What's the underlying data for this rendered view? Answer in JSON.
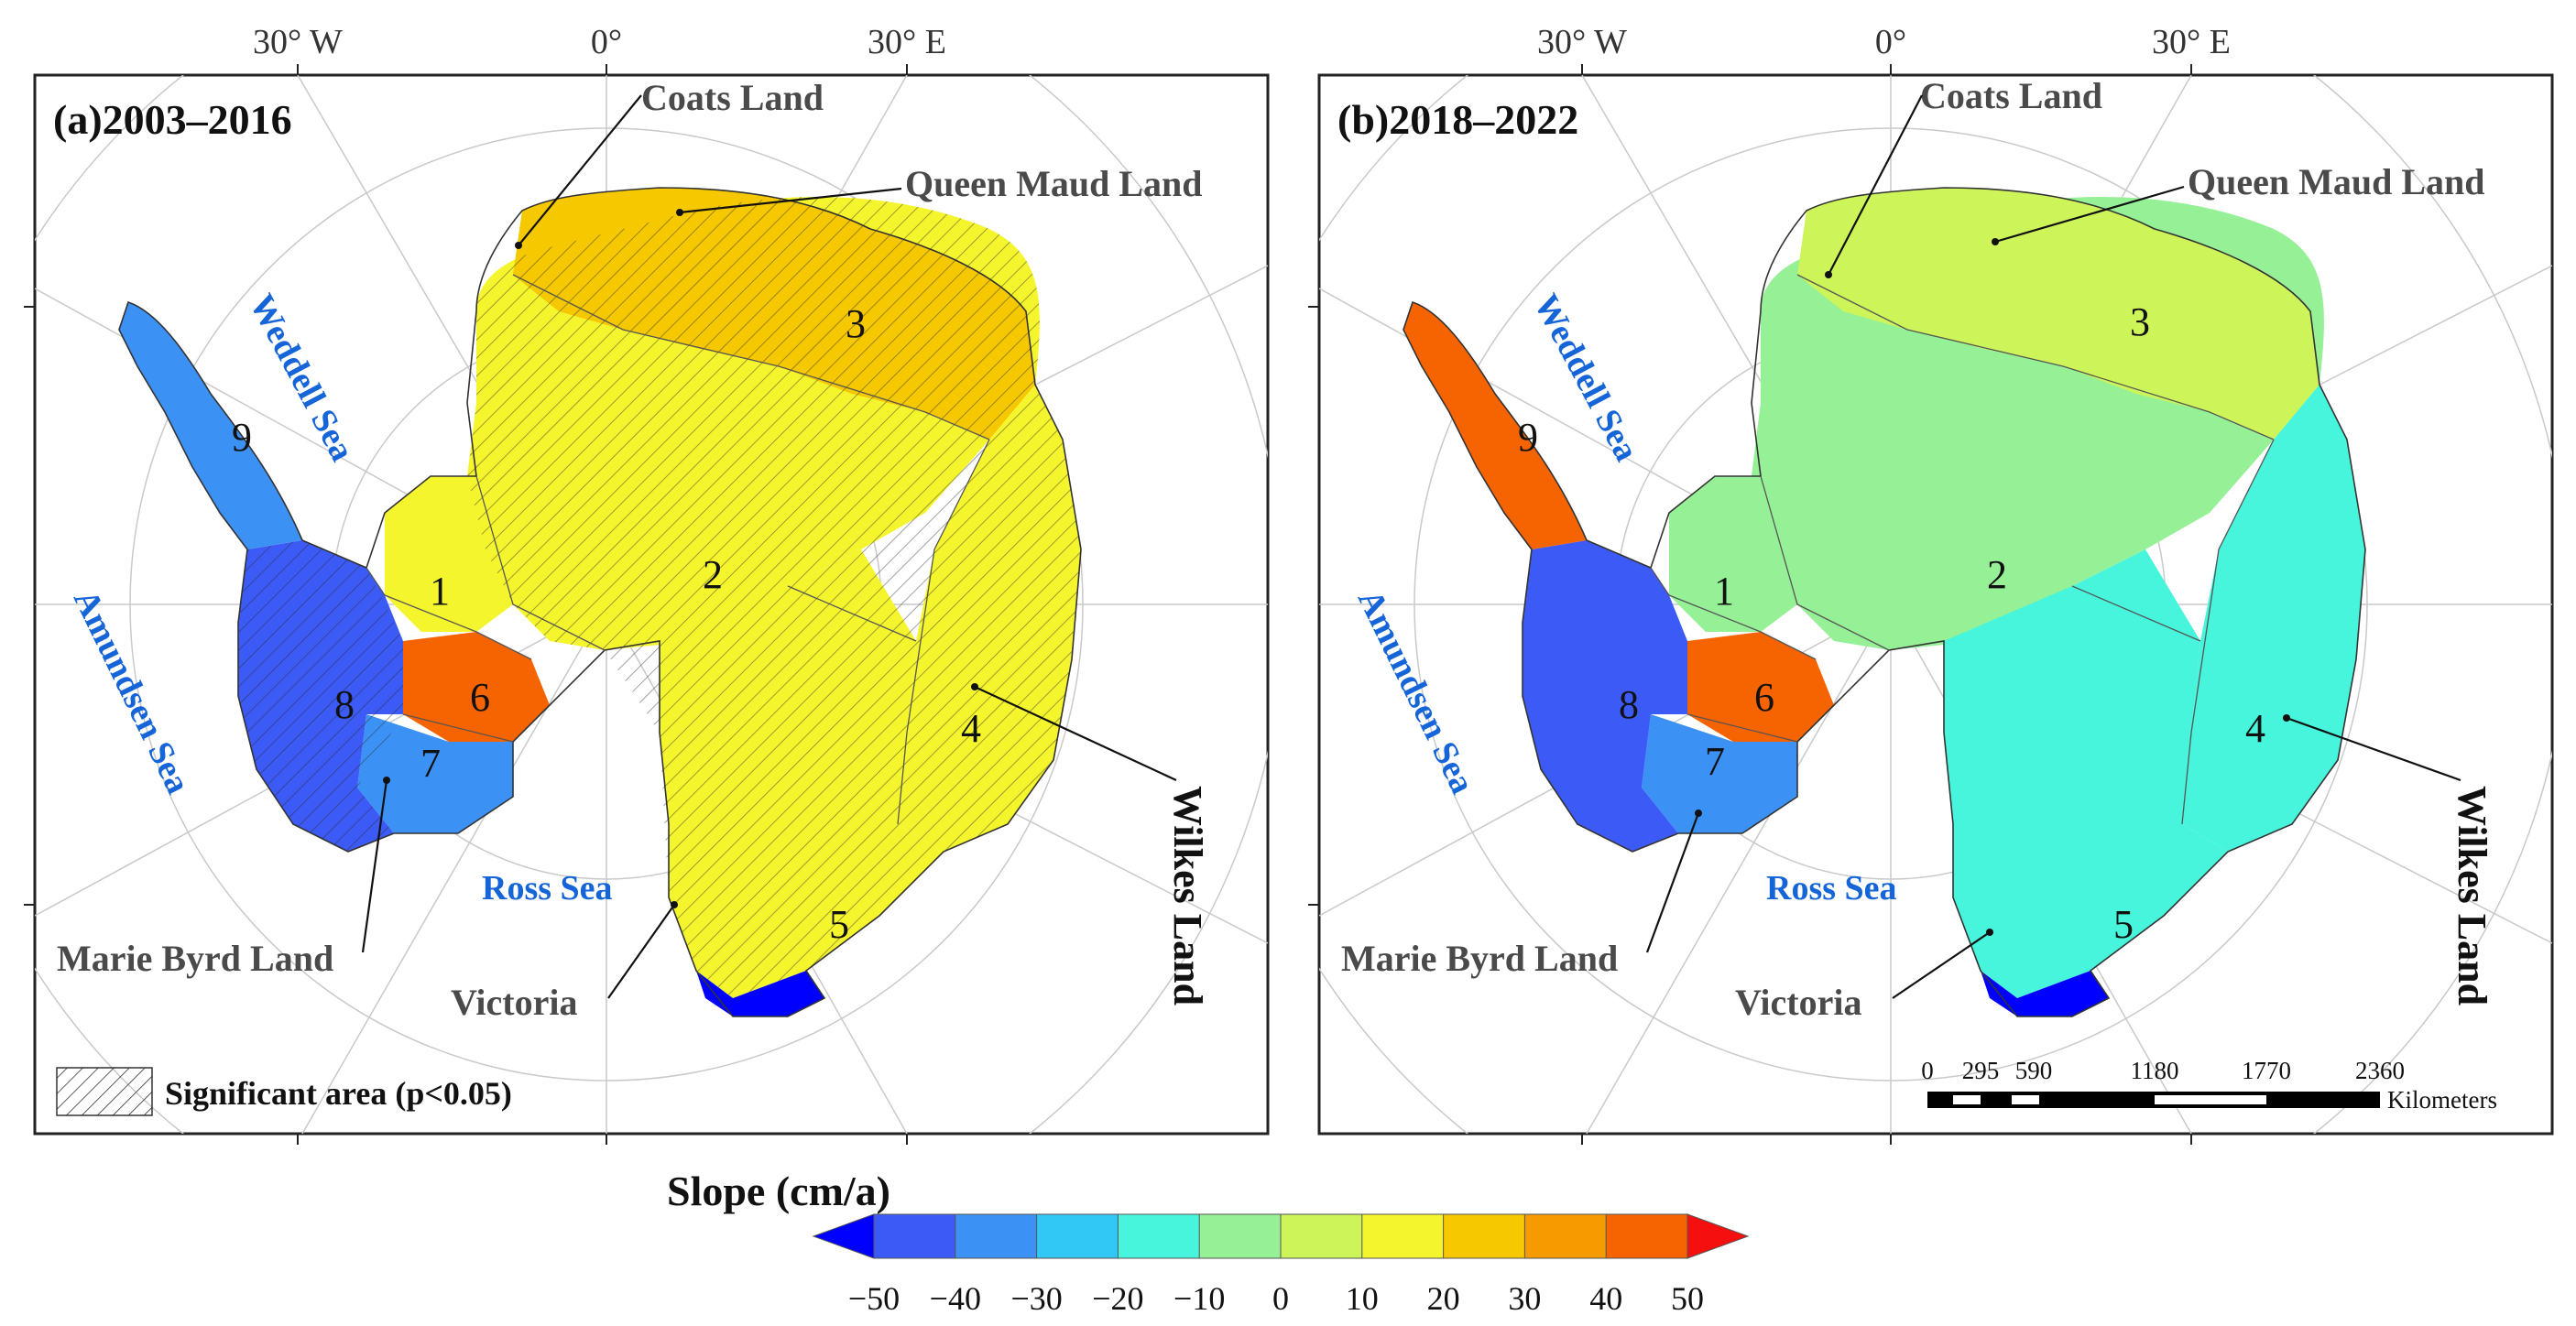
{
  "figure": {
    "panels": [
      {
        "title": "(a)2003–2016",
        "longitude_labels": [
          "30° W",
          "0°",
          "30° E"
        ],
        "place_labels": {
          "coats_land": "Coats Land",
          "queen_maud_land": "Queen Maud Land",
          "weddell_sea": "Weddell Sea",
          "amundsen_sea": "Amundsen Sea",
          "ross_sea": "Ross Sea",
          "marie_byrd_land": "Marie Byrd Land",
          "victoria": "Victoria",
          "wilkes_land": "Wilkes Land"
        },
        "basin_numbers": [
          "1",
          "2",
          "3",
          "4",
          "5",
          "6",
          "7",
          "8",
          "9"
        ],
        "legend": {
          "label": "Significant area (p<0.05)"
        },
        "basin_slope_color_class": {
          "1": 10,
          "2": 10,
          "3": 25,
          "4": 10,
          "5": 10,
          "6": 45,
          "7": -35,
          "8": -50,
          "9": -40
        },
        "hatched_significant": true
      },
      {
        "title": "(b)2018–2022",
        "longitude_labels": [
          "30° W",
          "0°",
          "30° E"
        ],
        "place_labels": {
          "coats_land": "Coats Land",
          "queen_maud_land": "Queen Maud Land",
          "weddell_sea": "Weddell Sea",
          "amundsen_sea": "Amundsen Sea",
          "ross_sea": "Ross Sea",
          "marie_byrd_land": "Marie Byrd Land",
          "victoria": "Victoria",
          "wilkes_land": "Wilkes Land"
        },
        "basin_numbers": [
          "1",
          "2",
          "3",
          "4",
          "5",
          "6",
          "7",
          "8",
          "9"
        ],
        "basin_slope_color_class": {
          "1": -10,
          "2": -10,
          "3": 5,
          "4": -20,
          "5": -20,
          "6": 40,
          "7": -40,
          "8": -50,
          "9": 40
        },
        "hatched_significant": false,
        "scale_bar": {
          "ticks": [
            "0",
            "295",
            "590",
            "1180",
            "1770",
            "2360"
          ],
          "unit": "Kilometers"
        }
      }
    ],
    "colorbar": {
      "title": "Slope (cm/a)",
      "ticks": [
        "−50",
        "−40",
        "−30",
        "−20",
        "−10",
        "0",
        "10",
        "20",
        "30",
        "40",
        "50"
      ],
      "colors": [
        "#0000ff",
        "#3c5af5",
        "#3c91f5",
        "#32c8f5",
        "#46f5dc",
        "#96f096",
        "#cdf55a",
        "#f5f52d",
        "#f5c800",
        "#f59b00",
        "#f56400",
        "#f50f0f"
      ],
      "extend": "both"
    }
  }
}
